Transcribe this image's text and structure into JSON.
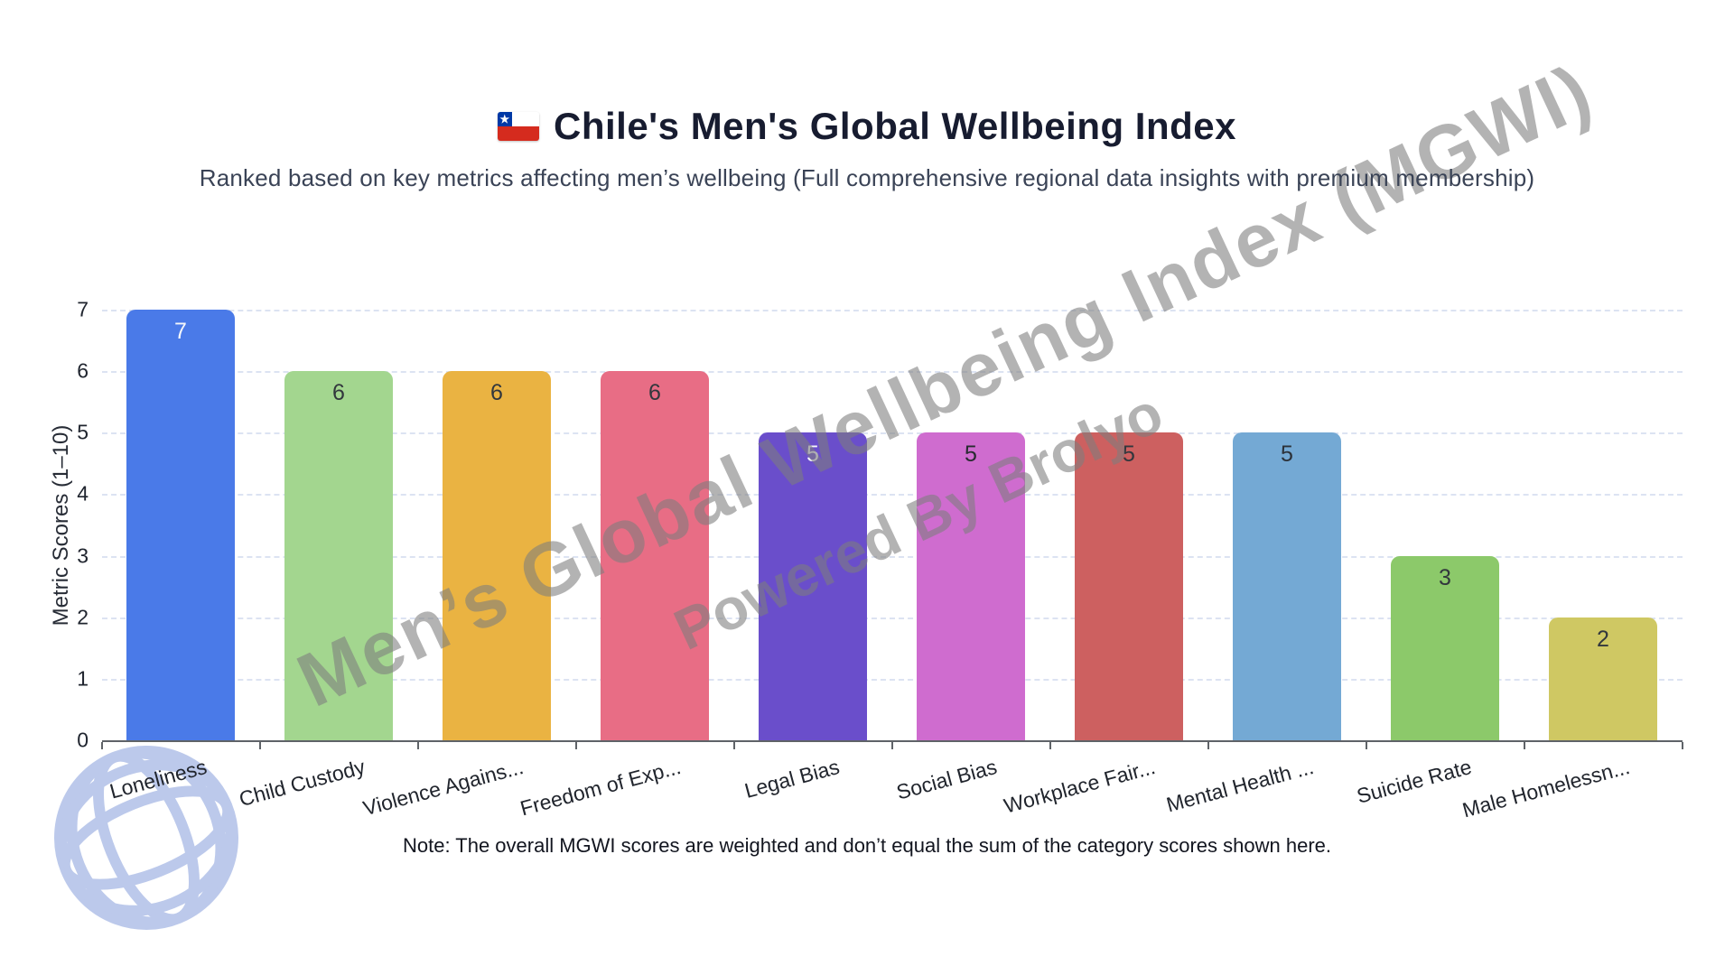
{
  "header": {
    "title": "Chile's Men's Global Wellbeing Index",
    "subtitle": "Ranked based on key metrics affecting men’s wellbeing (Full comprehensive regional data insights with premium membership)"
  },
  "watermark": {
    "line1": "Men’s Global Wellbeing Index (MGWI)",
    "line2": "Powered By Brolyo",
    "color": "#7e7e7e"
  },
  "note": "Note: The overall MGWI scores are weighted and don’t equal the sum of the category scores shown here.",
  "icons": {
    "flag": "chile-flag-icon",
    "globe": "globe-icon",
    "globe_color": "#b9c7ea"
  },
  "chart_data": {
    "type": "bar",
    "title": "Chile's Men's Global Wellbeing Index",
    "categories": [
      "Loneliness",
      "Child Custody",
      "Violence Agains...",
      "Freedom of Exp...",
      "Legal Bias",
      "Social Bias",
      "Workplace Fair...",
      "Mental Health ...",
      "Suicide Rate",
      "Male Homelessn..."
    ],
    "values": [
      7,
      6,
      6,
      6,
      5,
      5,
      5,
      5,
      3,
      2
    ],
    "bar_colors": [
      "#4a7ae8",
      "#a3d68f",
      "#eab342",
      "#e86d85",
      "#6a4ecb",
      "#cf6ccf",
      "#cd6060",
      "#74a9d4",
      "#8cc96a",
      "#cfc863"
    ],
    "value_label_colors": [
      "#f5f7fa",
      "#32373d",
      "#32373d",
      "#32373d",
      "#f5f7fa",
      "#272b30",
      "#32373d",
      "#2c3138",
      "#32373d",
      "#32373d"
    ],
    "xlabel": "",
    "ylabel": "Metric Scores (1–10)",
    "ylim": [
      0,
      7
    ],
    "yticks": [
      0,
      1,
      2,
      3,
      4,
      5,
      6,
      7
    ],
    "grid": "horizontal-dashed",
    "gridline_color": "#dce3f2",
    "axis_line_color": "#5f6368",
    "legend": "none",
    "value_labels": "inside-top"
  }
}
